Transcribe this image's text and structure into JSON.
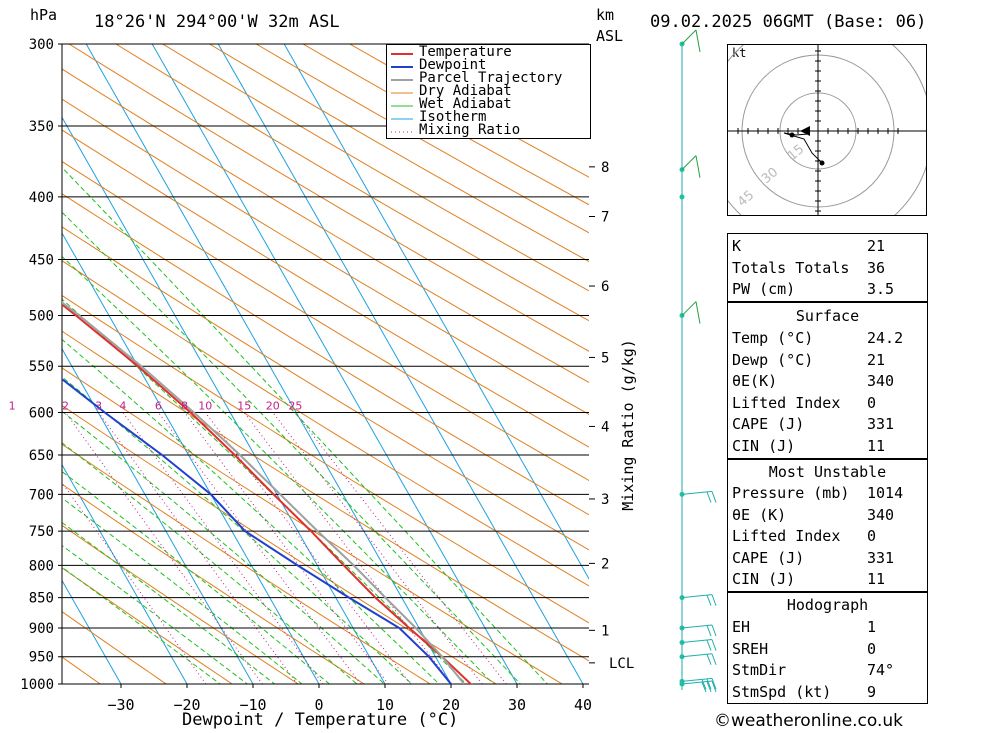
{
  "header": {
    "hpa_unit": "hPa",
    "location": "18°26'N 294°00'W 32m ASL",
    "km_unit": "km",
    "km_sub": "ASL",
    "datetime": "09.02.2025 06GMT (Base: 06)"
  },
  "colors": {
    "temperature": "#e0302c",
    "dewpoint": "#2040d0",
    "parcel": "#a0a0a0",
    "dry_adiabat": "#e08020",
    "wet_adiabat": "#20c020",
    "isotherm": "#20a0e0",
    "mixing_ratio": "#c0208c",
    "wind": "#20c0c0"
  },
  "chart_data": {
    "type": "line",
    "title": "",
    "xlabel": "Dewpoint / Temperature (°C)",
    "ylabel": "hPa",
    "xlim": [
      -40,
      40
    ],
    "xticks": [
      -30,
      -20,
      -10,
      0,
      10,
      20,
      30,
      40
    ],
    "pressure_levels": [
      300,
      350,
      400,
      450,
      500,
      550,
      600,
      650,
      700,
      750,
      800,
      850,
      900,
      950,
      1000
    ],
    "legend": [
      "Temperature",
      "Dewpoint",
      "Parcel Trajectory",
      "Dry Adiabat",
      "Wet Adiabat",
      "Isotherm",
      "Mixing Ratio"
    ],
    "legend_position": "top-center",
    "series": [
      {
        "name": "Temperature",
        "points": [
          [
            1014,
            24.2
          ],
          [
            1000,
            23
          ],
          [
            950,
            21
          ],
          [
            900,
            18.5
          ],
          [
            850,
            16
          ],
          [
            800,
            14
          ],
          [
            750,
            12
          ],
          [
            700,
            9.5
          ],
          [
            650,
            7
          ],
          [
            600,
            4
          ],
          [
            550,
            0
          ],
          [
            500,
            -5
          ],
          [
            450,
            -11
          ],
          [
            400,
            -18
          ],
          [
            350,
            -27
          ],
          [
            300,
            -37
          ]
        ]
      },
      {
        "name": "Dewpoint",
        "points": [
          [
            1014,
            21
          ],
          [
            1000,
            20
          ],
          [
            950,
            19
          ],
          [
            900,
            17
          ],
          [
            850,
            12
          ],
          [
            800,
            7
          ],
          [
            750,
            2
          ],
          [
            700,
            0
          ],
          [
            650,
            -4
          ],
          [
            600,
            -9
          ],
          [
            550,
            -14
          ],
          [
            500,
            -34
          ],
          [
            450,
            -39
          ],
          [
            400,
            -38
          ],
          [
            350,
            -33
          ],
          [
            300,
            -43
          ]
        ]
      },
      {
        "name": "Parcel Trajectory",
        "points": [
          [
            1000,
            22
          ],
          [
            950,
            21
          ],
          [
            900,
            19.5
          ],
          [
            850,
            17.5
          ],
          [
            800,
            15.5
          ],
          [
            750,
            13
          ],
          [
            700,
            10.5
          ],
          [
            650,
            7.8
          ],
          [
            600,
            4.5
          ],
          [
            550,
            0.5
          ],
          [
            500,
            -4.5
          ],
          [
            450,
            -11
          ],
          [
            400,
            -18
          ],
          [
            350,
            -28
          ],
          [
            300,
            -39
          ]
        ]
      }
    ],
    "mixing_ratio_labels": [
      "1",
      "2",
      "3",
      "4",
      "6",
      "8",
      "10",
      "15",
      "20",
      "25"
    ],
    "mixing_ratio_axis_label": "Mixing Ratio (g/kg)",
    "km_ticks": [
      {
        "label": "8",
        "p": 378
      },
      {
        "label": "7",
        "p": 415
      },
      {
        "label": "6",
        "p": 473
      },
      {
        "label": "5",
        "p": 541
      },
      {
        "label": "4",
        "p": 616
      },
      {
        "label": "3",
        "p": 706
      },
      {
        "label": "2",
        "p": 797
      },
      {
        "label": "1",
        "p": 904
      }
    ],
    "lcl": {
      "label": "LCL",
      "p": 961
    }
  },
  "hodograph": {
    "unit": "kt",
    "ring_labels": [
      "15",
      "30",
      "45"
    ]
  },
  "indices": [
    {
      "label": "K",
      "value": "21"
    },
    {
      "label": "Totals Totals",
      "value": "36"
    },
    {
      "label": "PW (cm)",
      "value": "3.5"
    }
  ],
  "surface": {
    "title": "Surface",
    "rows": [
      {
        "label": "Temp (°C)",
        "value": "24.2"
      },
      {
        "label": "Dewp (°C)",
        "value": "21"
      },
      {
        "label": "θE(K)",
        "value": "340"
      },
      {
        "label": "Lifted Index",
        "value": "0"
      },
      {
        "label": "CAPE (J)",
        "value": "331"
      },
      {
        "label": "CIN (J)",
        "value": "11"
      }
    ]
  },
  "most_unstable": {
    "title": "Most Unstable",
    "rows": [
      {
        "label": "Pressure (mb)",
        "value": "1014"
      },
      {
        "label": "θE (K)",
        "value": "340"
      },
      {
        "label": "Lifted Index",
        "value": "0"
      },
      {
        "label": "CAPE (J)",
        "value": "331"
      },
      {
        "label": "CIN (J)",
        "value": "11"
      }
    ]
  },
  "hodograph_table": {
    "title": "Hodograph",
    "rows": [
      {
        "label": "EH",
        "value": "1"
      },
      {
        "label": "SREH",
        "value": "0"
      },
      {
        "label": "StmDir",
        "value": "74°"
      },
      {
        "label": "StmSpd (kt)",
        "value": "9"
      }
    ]
  },
  "footer": {
    "copyright": "©weatheronline.co.uk"
  }
}
